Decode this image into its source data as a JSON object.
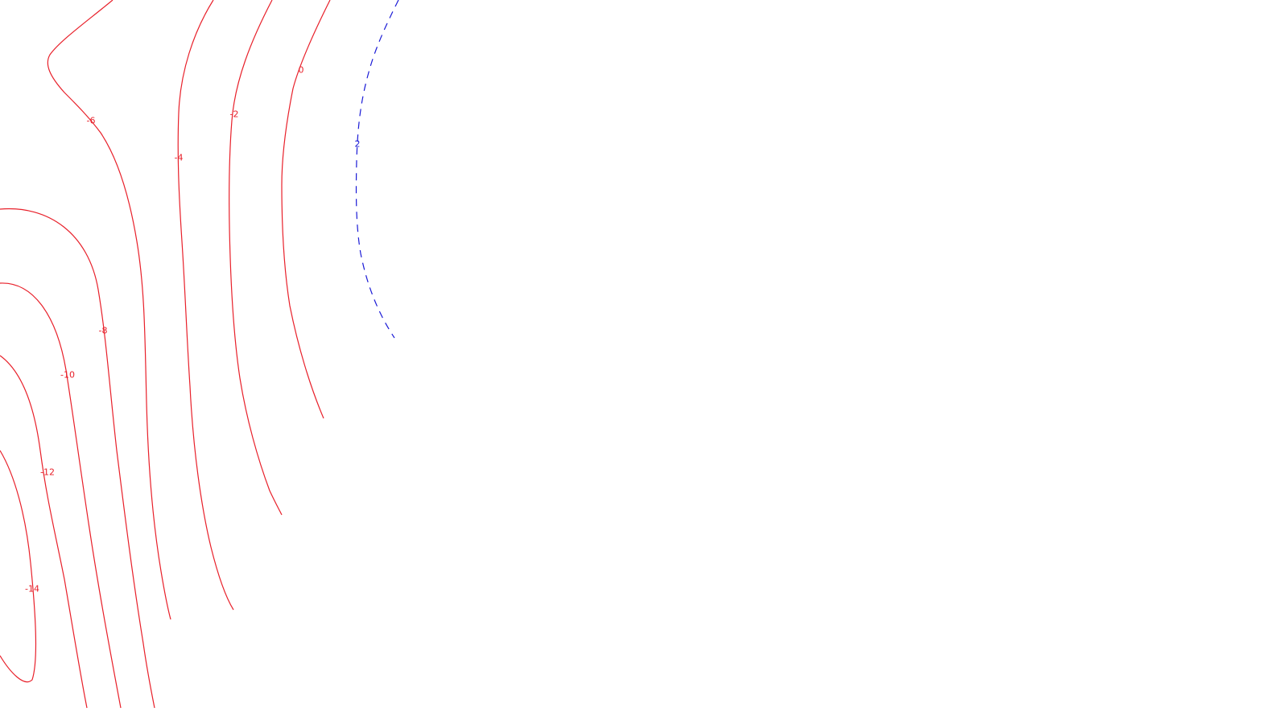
{
  "map": {
    "type": "contour-map",
    "line_colors": {
      "negative_and_zero": "#e8202a",
      "positive": "#1a1ad6"
    },
    "contours": [
      {
        "level": -14,
        "label": "-14",
        "color": "#e8202a",
        "style": "solid"
      },
      {
        "level": -12,
        "label": "-12",
        "color": "#e8202a",
        "style": "solid"
      },
      {
        "level": -10,
        "label": "-10",
        "color": "#e8202a",
        "style": "solid"
      },
      {
        "level": -8,
        "label": "-8",
        "color": "#e8202a",
        "style": "solid"
      },
      {
        "level": -6,
        "label": "-6",
        "color": "#e8202a",
        "style": "solid"
      },
      {
        "level": -4,
        "label": "-4",
        "color": "#e8202a",
        "style": "solid"
      },
      {
        "level": -2,
        "label": "-2",
        "color": "#e8202a",
        "style": "solid"
      },
      {
        "level": 0,
        "label": "0",
        "color": "#e8202a",
        "style": "solid"
      },
      {
        "level": 2,
        "label": "2",
        "color": "#1a1ad6",
        "style": "dashed"
      }
    ]
  }
}
